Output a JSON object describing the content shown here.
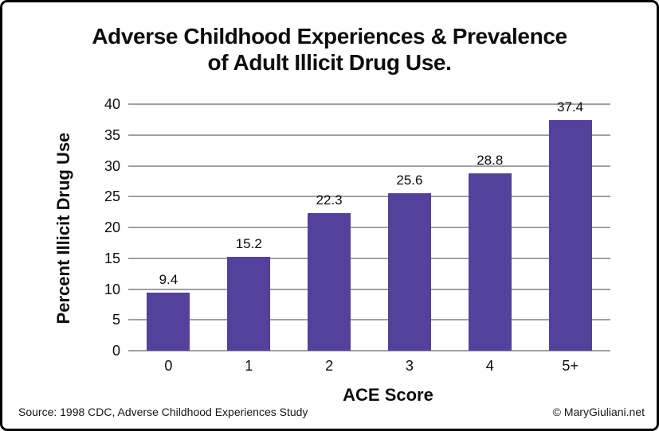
{
  "title": {
    "line1": "Adverse Childhood Experiences & Prevalence",
    "line2": "of Adult Illicit Drug Use."
  },
  "chart_data": {
    "type": "bar",
    "title": "Adverse Childhood Experiences & Prevalence of Adult Illicit Drug Use.",
    "categories": [
      "0",
      "1",
      "2",
      "3",
      "4",
      "5+"
    ],
    "values": [
      9.4,
      15.2,
      22.3,
      25.6,
      28.8,
      37.4
    ],
    "value_labels": [
      "9.4",
      "15.2",
      "22.3",
      "25.6",
      "28.8",
      "37.4"
    ],
    "xlabel": "ACE Score",
    "ylabel": "Percent Illicit Drug Use",
    "ylim": [
      0,
      40
    ],
    "yticks": [
      0,
      5,
      10,
      15,
      20,
      25,
      30,
      35,
      40
    ],
    "grid": "horizontal",
    "legend": "none",
    "bar_color": "#54419b",
    "gridline_color": "#a0a0a0",
    "data_labels": true
  },
  "footer": {
    "source": "Source: 1998 CDC, Adverse Childhood Experiences Study",
    "copyright": "© MaryGiuliani.net"
  }
}
